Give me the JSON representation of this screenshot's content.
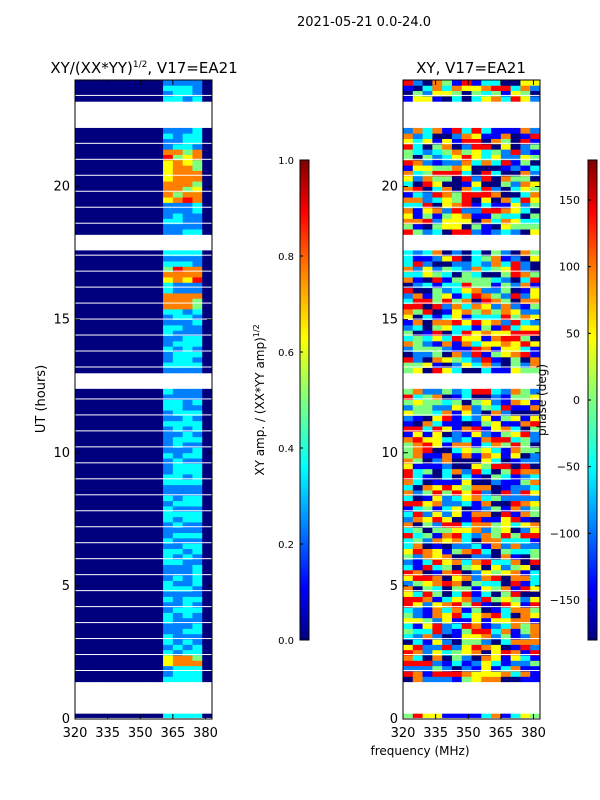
{
  "page_title": "2021-05-21 0.0-24.0",
  "x_axis_label": "frequency (MHz)",
  "chart_data": [
    {
      "type": "heatmap",
      "title_text": "XY/(XX*YY)",
      "title_sup": "1/2",
      "title_tail": ", V17=EA21",
      "xlabel": "",
      "ylabel": "UT (hours)",
      "xlim": [
        320,
        383
      ],
      "ylim": [
        0,
        24
      ],
      "x_ticks": [
        "320",
        "335",
        "350",
        "365",
        "380"
      ],
      "x_tick_values": [
        320,
        335,
        350,
        365,
        380
      ],
      "y_ticks": [
        "0",
        "5",
        "10",
        "15",
        "20"
      ],
      "y_tick_values": [
        0,
        5,
        10,
        15,
        20
      ],
      "colorbar": {
        "label": "XY amp. / (XX*YY amp)",
        "label_sup": "1/2",
        "range": [
          0.0,
          1.0
        ],
        "ticks": [
          "0.0",
          "0.2",
          "0.4",
          "0.6",
          "0.8",
          "1.0"
        ],
        "tick_values": [
          0.0,
          0.2,
          0.4,
          0.6,
          0.8,
          1.0
        ]
      },
      "data_gaps_hours": [
        [
          0.2,
          1.4
        ],
        [
          12.4,
          13.0
        ],
        [
          17.6,
          18.3
        ],
        [
          22.3,
          23.2
        ]
      ],
      "high_amplitude_band_mhz": [
        362,
        380
      ],
      "high_amplitude_hours": [
        [
          2.0,
          2.5
        ],
        [
          15.4,
          16.0
        ],
        [
          16.5,
          17.0
        ],
        [
          19.5,
          21.5
        ]
      ]
    },
    {
      "type": "heatmap",
      "title_text": "XY, V17=EA21",
      "xlabel": "frequency (MHz)",
      "ylabel": "",
      "xlim": [
        320,
        383
      ],
      "ylim": [
        0,
        24
      ],
      "x_ticks": [
        "320",
        "335",
        "350",
        "365",
        "380"
      ],
      "x_tick_values": [
        320,
        335,
        350,
        365,
        380
      ],
      "y_ticks": [
        "0",
        "5",
        "10",
        "15",
        "20"
      ],
      "y_tick_values": [
        0,
        5,
        10,
        15,
        20
      ],
      "colorbar": {
        "label": "phase (deg)",
        "range": [
          -180,
          180
        ],
        "ticks": [
          "−150",
          "−100",
          "−50",
          "0",
          "50",
          "100",
          "150"
        ],
        "tick_values": [
          -150,
          -100,
          -50,
          0,
          50,
          100,
          150
        ]
      },
      "data_gaps_hours": [
        [
          0.2,
          1.4
        ],
        [
          12.4,
          13.0
        ],
        [
          17.6,
          18.3
        ],
        [
          22.3,
          23.2
        ]
      ]
    }
  ],
  "colors": {
    "jet": [
      "#00007f",
      "#0000ff",
      "#007fff",
      "#00ffff",
      "#7fff7f",
      "#ffff00",
      "#ff7f00",
      "#ff0000",
      "#7f0000"
    ]
  }
}
